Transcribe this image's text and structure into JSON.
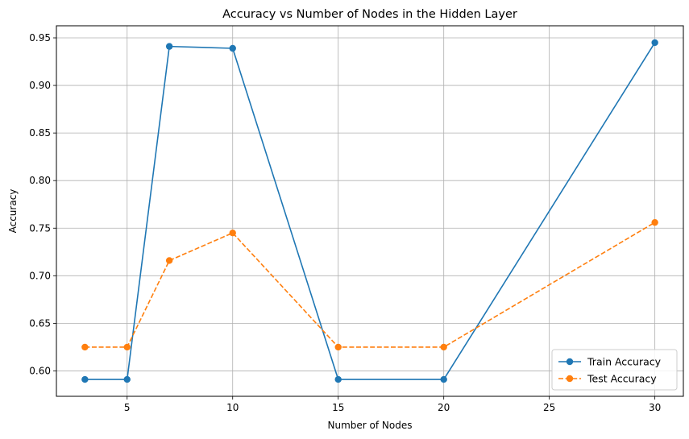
{
  "chart_data": {
    "type": "line",
    "title": "Accuracy vs Number of Nodes in the Hidden Layer",
    "xlabel": "Number of Nodes",
    "ylabel": "Accuracy",
    "x": [
      3,
      5,
      7,
      10,
      15,
      20,
      30
    ],
    "xlim": [
      1.65,
      31.35
    ],
    "ylim": [
      0.5733,
      0.9627
    ],
    "xticks": [
      5,
      10,
      15,
      20,
      25,
      30
    ],
    "yticks": [
      0.6,
      0.65,
      0.7,
      0.75,
      0.8,
      0.85,
      0.9,
      0.95
    ],
    "ytick_labels": [
      "0.60",
      "0.65",
      "0.70",
      "0.75",
      "0.80",
      "0.85",
      "0.90",
      "0.95"
    ],
    "grid": true,
    "legend_position": "bottom-right",
    "series": [
      {
        "name": "Train Accuracy",
        "values": [
          0.591,
          0.591,
          0.941,
          0.939,
          0.591,
          0.591,
          0.945
        ],
        "color": "#1f77b4",
        "linestyle": "solid",
        "marker": "circle"
      },
      {
        "name": "Test Accuracy",
        "values": [
          0.625,
          0.625,
          0.716,
          0.745,
          0.625,
          0.625,
          0.756
        ],
        "color": "#ff7f0e",
        "linestyle": "dashed",
        "marker": "circle"
      }
    ]
  }
}
